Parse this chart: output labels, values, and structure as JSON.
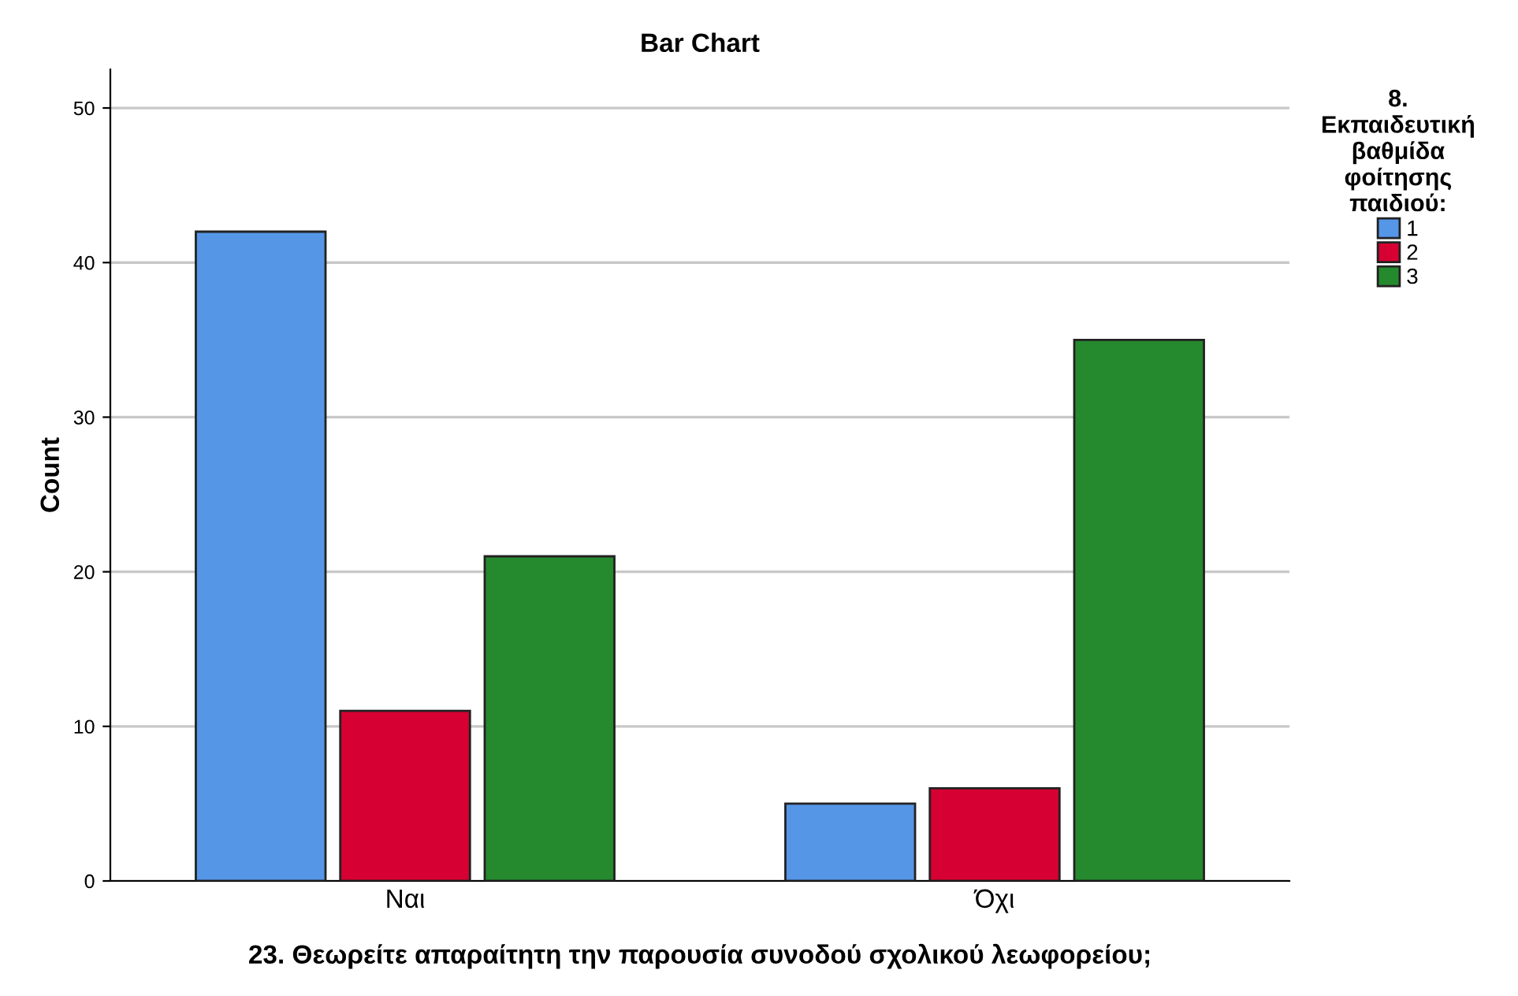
{
  "chart_data": {
    "type": "bar",
    "title": "Bar Chart",
    "xlabel": "23. Θεωρείτε απαραίτητη την παρουσία συνοδού σχολικού λεωφορείου;",
    "ylabel": "Count",
    "legend_title": "8. Εκπαιδευτική βαθμίδα φοίτησης παιδιού:",
    "categories": [
      "Ναι",
      "Όχι"
    ],
    "series": [
      {
        "name": "1",
        "color": "#5596e6",
        "values": [
          42,
          5
        ]
      },
      {
        "name": "2",
        "color": "#d60032",
        "values": [
          11,
          6
        ]
      },
      {
        "name": "3",
        "color": "#25892e",
        "values": [
          21,
          35
        ]
      }
    ],
    "ylim": [
      0,
      52.5
    ],
    "yticks": [
      0,
      10,
      20,
      30,
      40,
      50
    ],
    "grid": "y",
    "legend": "top right"
  }
}
